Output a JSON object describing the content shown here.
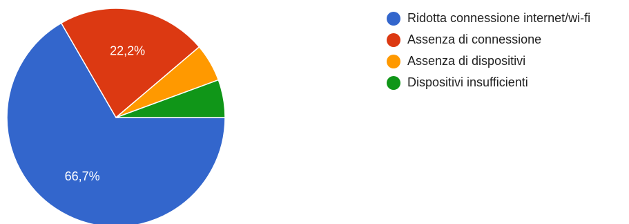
{
  "chart_data": {
    "type": "pie",
    "title": "",
    "legend_position": "right",
    "slices": [
      {
        "label": "Ridotta connessione internet/wi-fi",
        "value": 66.7,
        "display_label": "66,7%",
        "color": "#3366cc"
      },
      {
        "label": "Assenza di connessione",
        "value": 22.2,
        "display_label": "22,2%",
        "color": "#dc3912"
      },
      {
        "label": "Assenza di dispositivi",
        "value": 5.6,
        "display_label": "",
        "color": "#ff9900"
      },
      {
        "label": "Dispositivi insufficienti",
        "value": 5.6,
        "display_label": "",
        "color": "#109618"
      }
    ]
  }
}
